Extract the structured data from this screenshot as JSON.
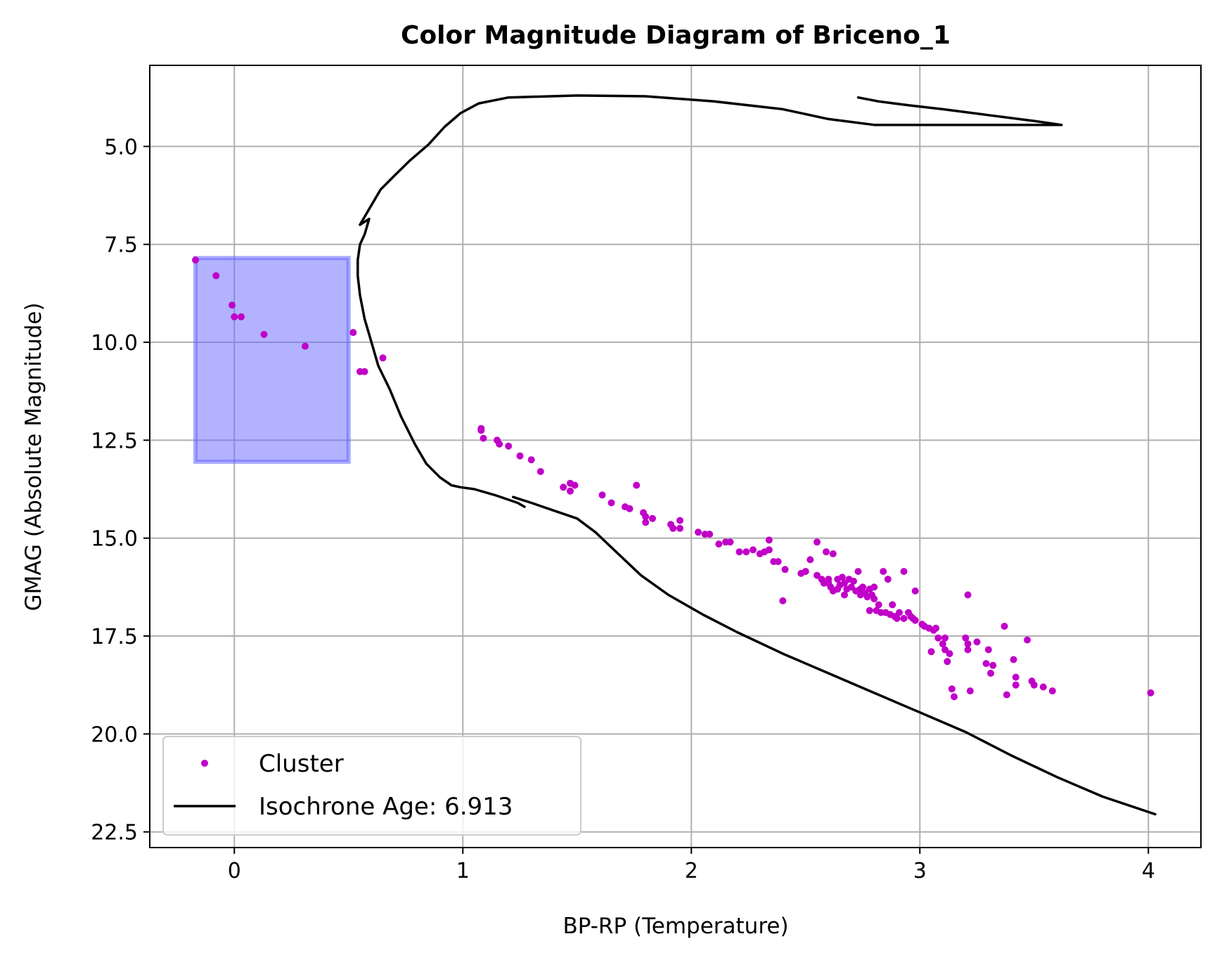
{
  "chart_data": {
    "type": "scatter",
    "title": "Color Magnitude Diagram of Briceno_1",
    "xlabel": "BP-RP (Temperature)",
    "ylabel": "GMAG (Absolute Magnitude)",
    "xlim": [
      -0.37,
      4.23
    ],
    "ylim": [
      22.9,
      2.93
    ],
    "y_inverted": true,
    "grid": true,
    "legend_position": "lower-left",
    "xticks": [
      {
        "v": 0,
        "label": "0"
      },
      {
        "v": 1,
        "label": "1"
      },
      {
        "v": 2,
        "label": "2"
      },
      {
        "v": 3,
        "label": "3"
      },
      {
        "v": 4,
        "label": "4"
      }
    ],
    "yticks": [
      {
        "v": 5,
        "label": "5.0"
      },
      {
        "v": 7.5,
        "label": "7.5"
      },
      {
        "v": 10,
        "label": "10.0"
      },
      {
        "v": 12.5,
        "label": "12.5"
      },
      {
        "v": 15,
        "label": "15.0"
      },
      {
        "v": 17.5,
        "label": "17.5"
      },
      {
        "v": 20,
        "label": "20.0"
      },
      {
        "v": 22.5,
        "label": "22.5"
      }
    ],
    "region": {
      "x0": -0.17,
      "x1": 0.5,
      "y0": 7.85,
      "y1": 13.05,
      "color": "#6666ff"
    },
    "series": [
      {
        "name": "Cluster",
        "kind": "scatter",
        "color": "#c000c8",
        "points": [
          [
            -0.17,
            7.9
          ],
          [
            -0.08,
            8.3
          ],
          [
            -0.01,
            9.05
          ],
          [
            0.0,
            9.35
          ],
          [
            0.03,
            9.35
          ],
          [
            0.13,
            9.8
          ],
          [
            0.31,
            10.1
          ],
          [
            0.52,
            9.75
          ],
          [
            0.55,
            10.75
          ],
          [
            0.57,
            10.75
          ],
          [
            0.65,
            10.4
          ],
          [
            1.08,
            12.2
          ],
          [
            1.08,
            12.25
          ],
          [
            1.09,
            12.45
          ],
          [
            1.15,
            12.5
          ],
          [
            1.16,
            12.6
          ],
          [
            1.2,
            12.65
          ],
          [
            1.25,
            12.9
          ],
          [
            1.3,
            13.0
          ],
          [
            1.34,
            13.3
          ],
          [
            1.44,
            13.7
          ],
          [
            1.47,
            13.6
          ],
          [
            1.47,
            13.8
          ],
          [
            1.49,
            13.65
          ],
          [
            1.61,
            13.9
          ],
          [
            1.65,
            14.1
          ],
          [
            1.71,
            14.2
          ],
          [
            1.73,
            14.25
          ],
          [
            1.76,
            13.65
          ],
          [
            1.79,
            14.35
          ],
          [
            1.8,
            14.45
          ],
          [
            1.8,
            14.6
          ],
          [
            1.83,
            14.5
          ],
          [
            1.91,
            14.65
          ],
          [
            1.92,
            14.75
          ],
          [
            1.95,
            14.55
          ],
          [
            1.95,
            14.75
          ],
          [
            2.03,
            14.85
          ],
          [
            2.06,
            14.9
          ],
          [
            2.08,
            14.9
          ],
          [
            2.12,
            15.15
          ],
          [
            2.15,
            15.1
          ],
          [
            2.17,
            15.1
          ],
          [
            2.21,
            15.35
          ],
          [
            2.24,
            15.35
          ],
          [
            2.27,
            15.3
          ],
          [
            2.3,
            15.4
          ],
          [
            2.32,
            15.35
          ],
          [
            2.34,
            15.3
          ],
          [
            2.36,
            15.6
          ],
          [
            2.38,
            15.6
          ],
          [
            2.41,
            15.8
          ],
          [
            2.34,
            15.05
          ],
          [
            2.4,
            16.6
          ],
          [
            2.48,
            15.9
          ],
          [
            2.5,
            15.85
          ],
          [
            2.52,
            15.55
          ],
          [
            2.55,
            15.1
          ],
          [
            2.55,
            15.95
          ],
          [
            2.57,
            16.05
          ],
          [
            2.58,
            16.15
          ],
          [
            2.59,
            15.35
          ],
          [
            2.6,
            16.05
          ],
          [
            2.6,
            16.15
          ],
          [
            2.61,
            16.25
          ],
          [
            2.62,
            15.4
          ],
          [
            2.62,
            16.35
          ],
          [
            2.64,
            16.05
          ],
          [
            2.64,
            16.3
          ],
          [
            2.65,
            16.2
          ],
          [
            2.66,
            16.0
          ],
          [
            2.67,
            16.15
          ],
          [
            2.67,
            16.45
          ],
          [
            2.68,
            16.3
          ],
          [
            2.69,
            16.05
          ],
          [
            2.7,
            16.25
          ],
          [
            2.71,
            16.1
          ],
          [
            2.72,
            16.35
          ],
          [
            2.73,
            15.85
          ],
          [
            2.74,
            16.3
          ],
          [
            2.74,
            16.45
          ],
          [
            2.75,
            16.25
          ],
          [
            2.76,
            16.4
          ],
          [
            2.77,
            16.5
          ],
          [
            2.78,
            16.3
          ],
          [
            2.78,
            16.85
          ],
          [
            2.79,
            16.45
          ],
          [
            2.8,
            16.25
          ],
          [
            2.8,
            16.55
          ],
          [
            2.81,
            16.85
          ],
          [
            2.82,
            16.7
          ],
          [
            2.83,
            16.9
          ],
          [
            2.84,
            15.85
          ],
          [
            2.85,
            16.9
          ],
          [
            2.86,
            16.05
          ],
          [
            2.87,
            16.95
          ],
          [
            2.88,
            16.7
          ],
          [
            2.89,
            17.0
          ],
          [
            2.9,
            17.05
          ],
          [
            2.91,
            16.9
          ],
          [
            2.93,
            15.85
          ],
          [
            2.93,
            17.05
          ],
          [
            2.95,
            16.9
          ],
          [
            2.96,
            17.0
          ],
          [
            2.97,
            17.05
          ],
          [
            2.98,
            16.35
          ],
          [
            2.98,
            17.1
          ],
          [
            3.01,
            17.2
          ],
          [
            3.02,
            17.25
          ],
          [
            3.04,
            17.3
          ],
          [
            3.05,
            17.9
          ],
          [
            3.06,
            17.35
          ],
          [
            3.07,
            17.3
          ],
          [
            3.08,
            17.55
          ],
          [
            3.1,
            17.7
          ],
          [
            3.11,
            17.85
          ],
          [
            3.11,
            17.55
          ],
          [
            3.12,
            18.15
          ],
          [
            3.13,
            17.95
          ],
          [
            3.14,
            18.85
          ],
          [
            3.15,
            19.05
          ],
          [
            3.2,
            17.55
          ],
          [
            3.21,
            17.7
          ],
          [
            3.21,
            17.85
          ],
          [
            3.21,
            16.45
          ],
          [
            3.22,
            18.9
          ],
          [
            3.25,
            17.65
          ],
          [
            3.29,
            18.2
          ],
          [
            3.3,
            17.85
          ],
          [
            3.31,
            18.45
          ],
          [
            3.32,
            18.25
          ],
          [
            3.37,
            17.25
          ],
          [
            3.38,
            19.0
          ],
          [
            3.41,
            18.1
          ],
          [
            3.42,
            18.55
          ],
          [
            3.42,
            18.75
          ],
          [
            3.47,
            17.6
          ],
          [
            3.49,
            18.65
          ],
          [
            3.5,
            18.75
          ],
          [
            3.54,
            18.8
          ],
          [
            3.58,
            18.9
          ],
          [
            4.01,
            18.95
          ]
        ]
      },
      {
        "name": "Isochrone Age: 6.913",
        "kind": "line",
        "color": "#000000",
        "segments": [
          [
            [
              0.55,
              7.0
            ],
            [
              0.59,
              6.85
            ],
            [
              0.58,
              7.05
            ],
            [
              0.57,
              7.25
            ],
            [
              0.55,
              7.5
            ],
            [
              0.54,
              7.9
            ],
            [
              0.54,
              8.3
            ],
            [
              0.55,
              8.8
            ],
            [
              0.57,
              9.4
            ],
            [
              0.6,
              10.0
            ],
            [
              0.63,
              10.6
            ],
            [
              0.68,
              11.2
            ],
            [
              0.73,
              11.9
            ],
            [
              0.79,
              12.6
            ],
            [
              0.84,
              13.1
            ],
            [
              0.9,
              13.45
            ],
            [
              0.95,
              13.65
            ],
            [
              0.99,
              13.7
            ],
            [
              1.05,
              13.75
            ],
            [
              1.14,
              13.9
            ],
            [
              1.24,
              14.1
            ],
            [
              1.27,
              14.2
            ]
          ],
          [
            [
              1.22,
              13.95
            ],
            [
              1.3,
              14.1
            ],
            [
              1.4,
              14.3
            ],
            [
              1.5,
              14.5
            ],
            [
              1.58,
              14.85
            ],
            [
              1.68,
              15.4
            ],
            [
              1.78,
              15.95
            ],
            [
              1.9,
              16.45
            ],
            [
              2.05,
              16.95
            ],
            [
              2.2,
              17.4
            ],
            [
              2.4,
              17.95
            ],
            [
              2.6,
              18.45
            ],
            [
              2.8,
              18.95
            ],
            [
              3.0,
              19.45
            ],
            [
              3.2,
              19.95
            ],
            [
              3.4,
              20.55
            ],
            [
              3.6,
              21.1
            ],
            [
              3.8,
              21.6
            ],
            [
              4.03,
              22.05
            ]
          ],
          [
            [
              0.55,
              7.0
            ],
            [
              0.59,
              6.6
            ],
            [
              0.64,
              6.1
            ],
            [
              0.7,
              5.75
            ],
            [
              0.77,
              5.35
            ],
            [
              0.85,
              4.95
            ],
            [
              0.92,
              4.5
            ],
            [
              0.99,
              4.15
            ],
            [
              1.07,
              3.9
            ],
            [
              1.2,
              3.75
            ],
            [
              1.5,
              3.7
            ],
            [
              1.8,
              3.72
            ],
            [
              2.1,
              3.85
            ],
            [
              2.4,
              4.05
            ],
            [
              2.6,
              4.3
            ],
            [
              2.8,
              4.45
            ],
            [
              3.0,
              4.45
            ],
            [
              3.2,
              4.45
            ],
            [
              3.4,
              4.45
            ],
            [
              3.58,
              4.45
            ],
            [
              3.62,
              4.45
            ],
            [
              3.5,
              4.35
            ],
            [
              3.3,
              4.2
            ],
            [
              3.1,
              4.05
            ],
            [
              2.95,
              3.95
            ],
            [
              2.82,
              3.85
            ],
            [
              2.73,
              3.75
            ]
          ]
        ]
      }
    ]
  }
}
